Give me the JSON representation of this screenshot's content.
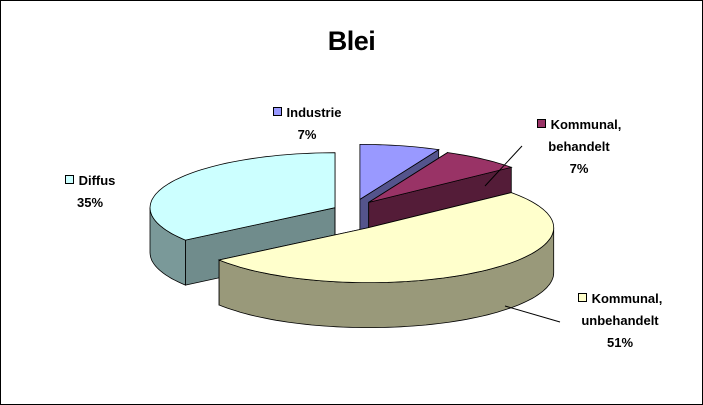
{
  "chart_data": {
    "type": "pie",
    "title": "Blei",
    "categories": [
      "Industrie",
      "Kommunal, behandelt",
      "Kommunal, unbehandelt",
      "Diffus"
    ],
    "values": [
      7,
      7,
      51,
      35
    ],
    "value_labels": [
      "7%",
      "7%",
      "51%",
      "35%"
    ],
    "colors": [
      "#9999ff",
      "#993366",
      "#ffffcc",
      "#ccffff"
    ],
    "three_d": true,
    "exploded": true
  }
}
